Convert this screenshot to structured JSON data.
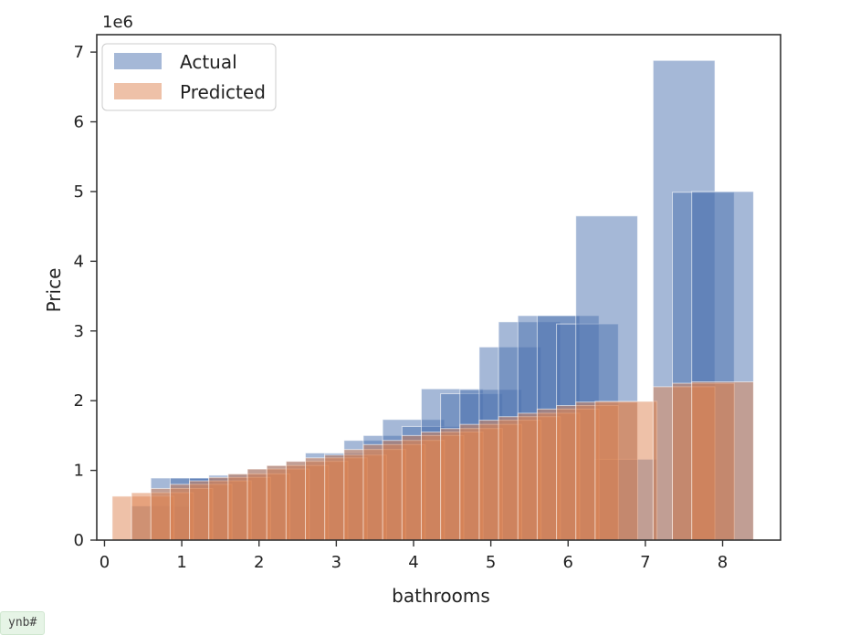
{
  "chart_data": {
    "type": "bar",
    "xlabel": "bathrooms",
    "ylabel": "Price",
    "y_scale_label": "1e6",
    "xlim": [
      -0.1,
      8.75
    ],
    "ylim": [
      0,
      7.25
    ],
    "xticks": [
      0,
      1,
      2,
      3,
      4,
      5,
      6,
      7,
      8
    ],
    "yticks": [
      0,
      1,
      2,
      3,
      4,
      5,
      6,
      7
    ],
    "legend_position": "top-left",
    "bar_width": 0.8,
    "series": [
      {
        "name": "Actual",
        "color": "#4C72B0",
        "opacity": 0.5,
        "x": [
          0.75,
          1.0,
          1.25,
          1.5,
          1.75,
          2.0,
          2.25,
          2.5,
          2.75,
          3.0,
          3.25,
          3.5,
          3.75,
          4.0,
          4.25,
          4.5,
          4.75,
          5.0,
          5.25,
          5.5,
          5.75,
          6.0,
          6.25,
          6.5,
          6.75,
          7.5,
          7.75,
          8.0
        ],
        "values": [
          0.49,
          0.89,
          0.89,
          0.89,
          0.93,
          0.95,
          1.02,
          1.07,
          1.13,
          1.25,
          1.24,
          1.43,
          1.5,
          1.73,
          1.63,
          2.17,
          2.1,
          2.16,
          2.77,
          3.13,
          3.22,
          3.22,
          3.1,
          4.65,
          1.16,
          6.88,
          4.99,
          5.0
        ],
        "values_unit": "millions"
      },
      {
        "name": "Predicted",
        "color": "#DD8452",
        "opacity": 0.5,
        "x": [
          0.5,
          0.75,
          1.0,
          1.25,
          1.5,
          1.75,
          2.0,
          2.25,
          2.5,
          2.75,
          3.0,
          3.25,
          3.5,
          3.75,
          4.0,
          4.25,
          4.5,
          4.75,
          5.0,
          5.25,
          5.5,
          5.75,
          6.0,
          6.25,
          6.5,
          6.75,
          7.5,
          7.75,
          8.0
        ],
        "values": [
          0.63,
          0.68,
          0.74,
          0.8,
          0.85,
          0.9,
          0.95,
          1.02,
          1.07,
          1.13,
          1.18,
          1.22,
          1.3,
          1.37,
          1.43,
          1.5,
          1.55,
          1.6,
          1.66,
          1.72,
          1.77,
          1.82,
          1.88,
          1.93,
          1.98,
          1.99,
          2.2,
          2.25,
          2.27
        ],
        "values_unit": "millions"
      }
    ]
  },
  "notebook_tag": "ynb#"
}
